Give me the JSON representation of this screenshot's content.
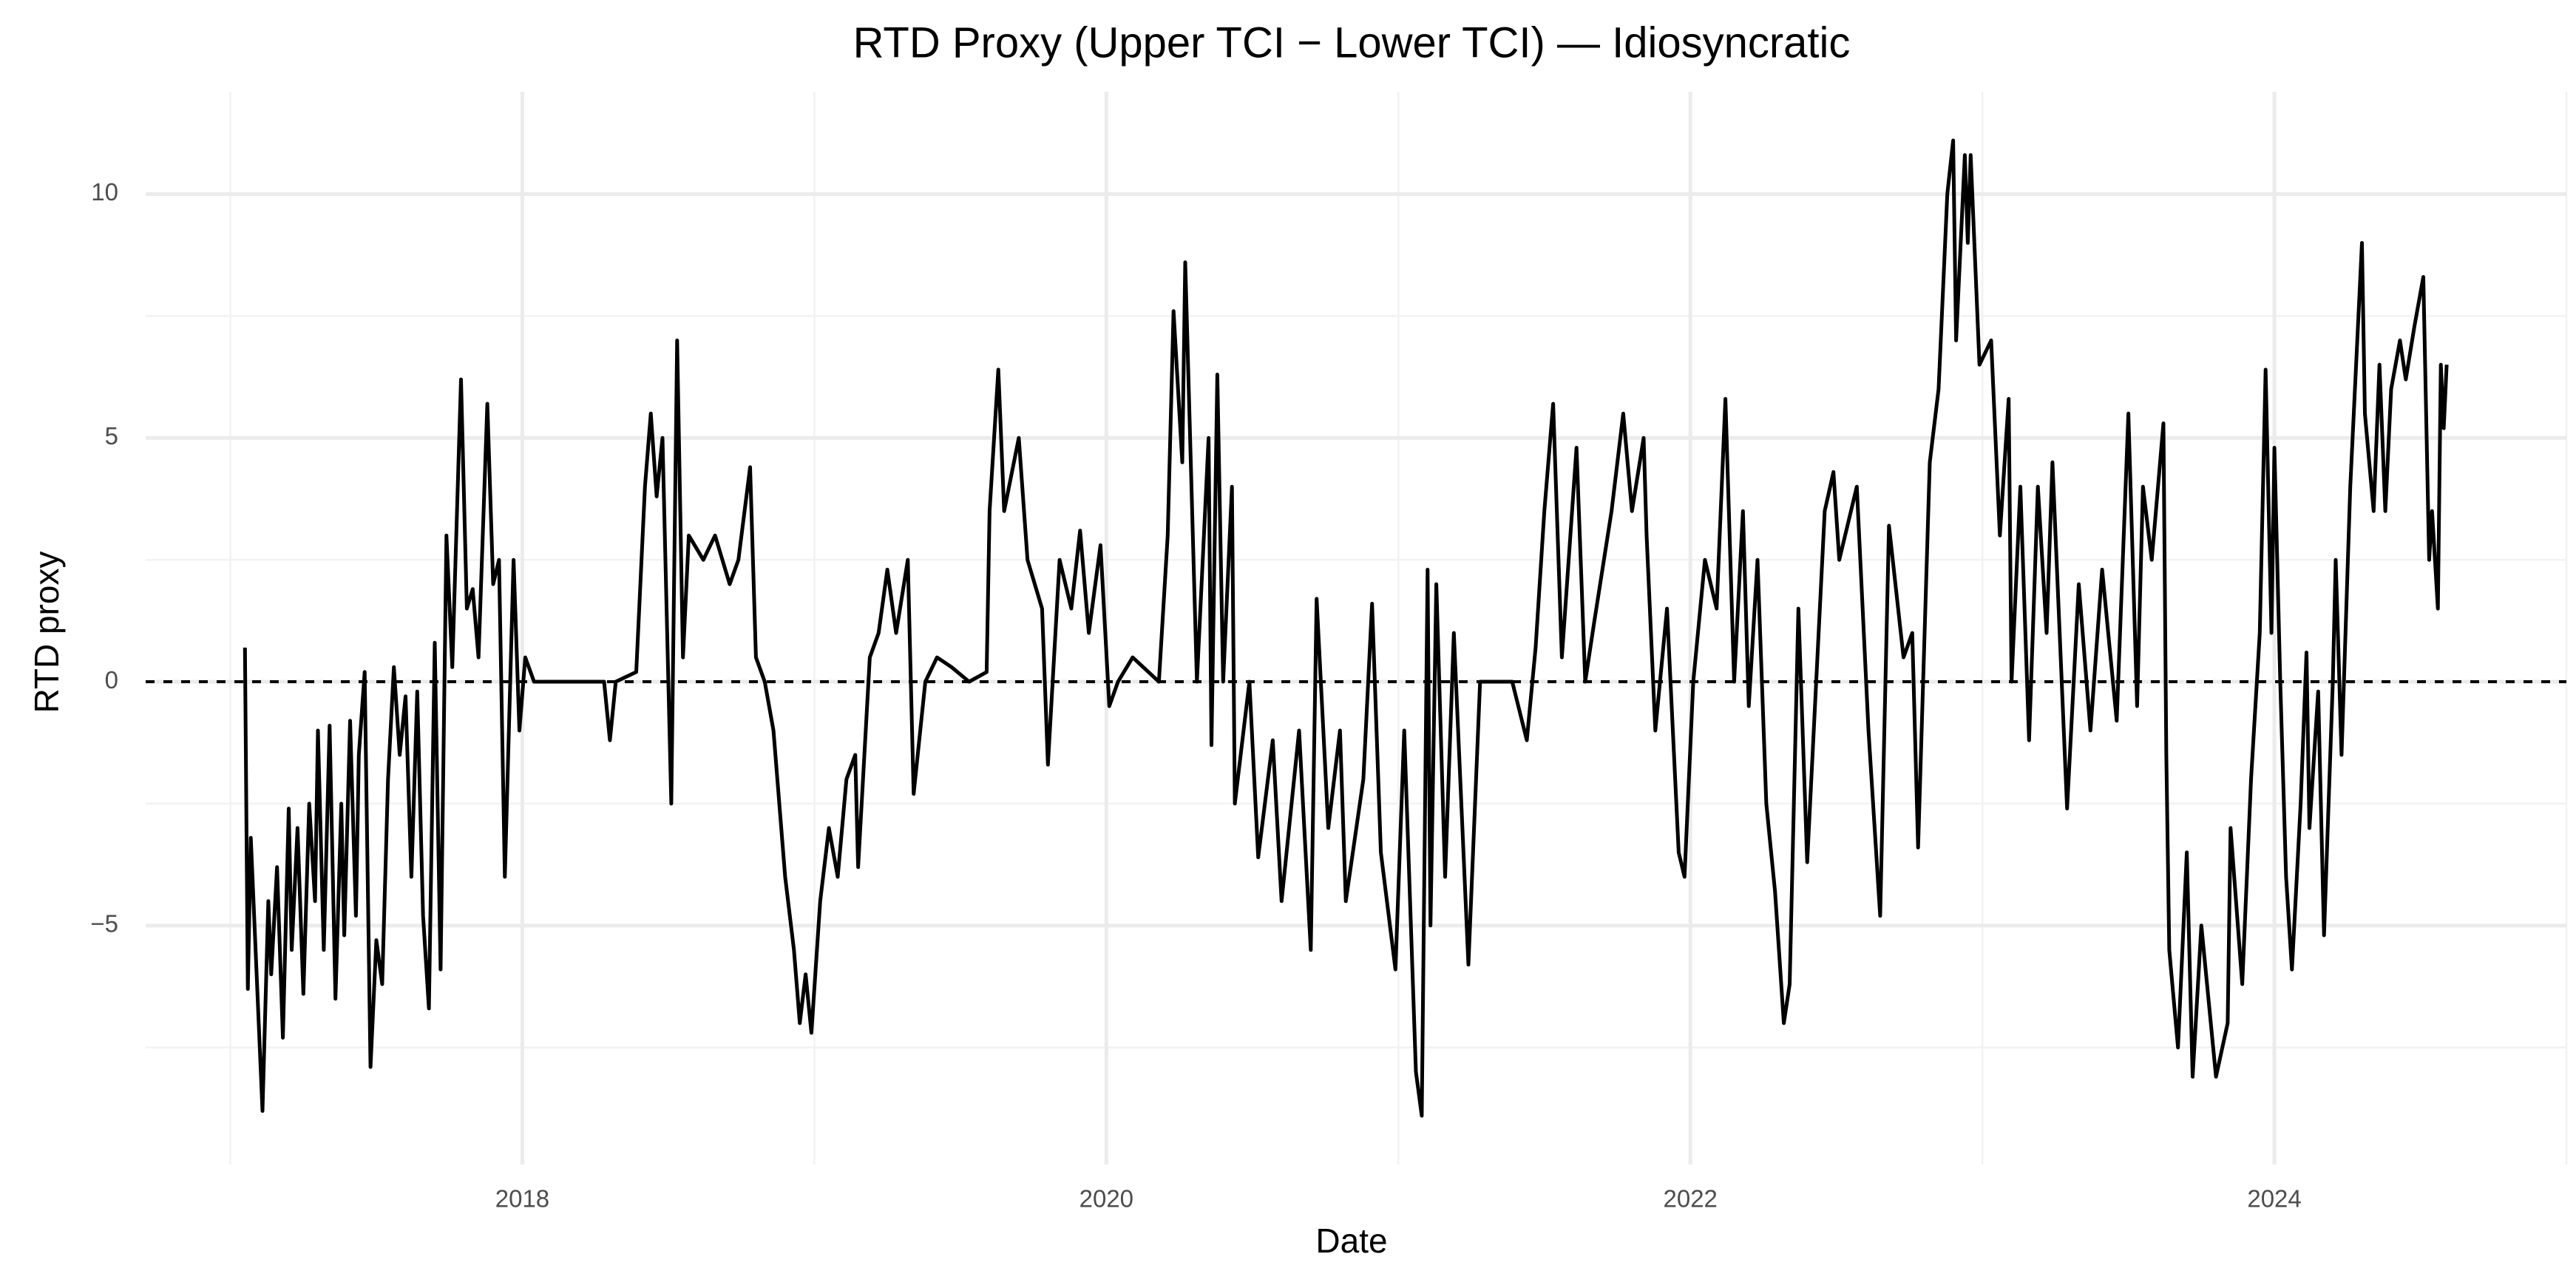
{
  "chart_data": {
    "type": "line",
    "title": "RTD Proxy (Upper TCI − Lower TCI) — Idiosyncratic",
    "x_label": "Date",
    "y_label": "RTD proxy",
    "color": "#000000",
    "reference_line": 0,
    "grid": true,
    "xlim": [
      2016.71,
      2025.0
    ],
    "xticks": [
      2018,
      2020,
      2022,
      2024
    ],
    "ylim": [
      -9.9,
      12.1
    ],
    "yticks": [
      {
        "value": -5,
        "label": "−5"
      },
      0,
      5,
      10
    ],
    "x": [
      2017.05,
      2017.06,
      2017.07,
      2017.09,
      2017.11,
      2017.13,
      2017.14,
      2017.16,
      2017.18,
      2017.2,
      2017.21,
      2017.23,
      2017.25,
      2017.27,
      2017.29,
      2017.3,
      2017.32,
      2017.34,
      2017.36,
      2017.38,
      2017.39,
      2017.41,
      2017.43,
      2017.44,
      2017.46,
      2017.48,
      2017.5,
      2017.52,
      2017.54,
      2017.56,
      2017.58,
      2017.6,
      2017.62,
      2017.64,
      2017.66,
      2017.68,
      2017.7,
      2017.72,
      2017.74,
      2017.76,
      2017.79,
      2017.81,
      2017.83,
      2017.85,
      2017.88,
      2017.9,
      2017.92,
      2017.94,
      2017.97,
      2017.99,
      2018.01,
      2018.04,
      2018.15,
      2018.28,
      2018.3,
      2018.32,
      2018.39,
      2018.42,
      2018.44,
      2018.46,
      2018.48,
      2018.51,
      2018.53,
      2018.55,
      2018.57,
      2018.62,
      2018.66,
      2018.71,
      2018.74,
      2018.78,
      2018.8,
      2018.83,
      2018.86,
      2018.9,
      2018.93,
      2018.95,
      2018.97,
      2018.99,
      2019.02,
      2019.05,
      2019.08,
      2019.11,
      2019.14,
      2019.15,
      2019.19,
      2019.22,
      2019.25,
      2019.28,
      2019.32,
      2019.34,
      2019.38,
      2019.42,
      2019.47,
      2019.53,
      2019.59,
      2019.6,
      2019.63,
      2019.65,
      2019.7,
      2019.73,
      2019.78,
      2019.8,
      2019.84,
      2019.88,
      2019.91,
      2019.94,
      2019.98,
      2020.01,
      2020.04,
      2020.09,
      2020.18,
      2020.21,
      2020.23,
      2020.26,
      2020.27,
      2020.31,
      2020.35,
      2020.36,
      2020.38,
      2020.4,
      2020.43,
      2020.44,
      2020.49,
      2020.52,
      2020.57,
      2020.6,
      2020.66,
      2020.7,
      2020.72,
      2020.76,
      2020.8,
      2020.82,
      2020.88,
      2020.91,
      2020.94,
      2020.99,
      2021.02,
      2021.06,
      2021.08,
      2021.1,
      2021.11,
      2021.13,
      2021.16,
      2021.19,
      2021.24,
      2021.28,
      2021.39,
      2021.44,
      2021.47,
      2021.5,
      2021.53,
      2021.56,
      2021.61,
      2021.64,
      2021.67,
      2021.73,
      2021.77,
      2021.8,
      2021.84,
      2021.85,
      2021.88,
      2021.92,
      2021.96,
      2021.98,
      2022.01,
      2022.05,
      2022.09,
      2022.12,
      2022.15,
      2022.18,
      2022.2,
      2022.23,
      2022.26,
      2022.29,
      2022.32,
      2022.34,
      2022.37,
      2022.4,
      2022.46,
      2022.49,
      2022.51,
      2022.57,
      2022.61,
      2022.65,
      2022.68,
      2022.73,
      2022.76,
      2022.78,
      2022.82,
      2022.85,
      2022.88,
      2022.9,
      2022.91,
      2022.94,
      2022.95,
      2022.96,
      2022.99,
      2023.03,
      2023.06,
      2023.09,
      2023.1,
      2023.13,
      2023.16,
      2023.19,
      2023.22,
      2023.24,
      2023.29,
      2023.33,
      2023.37,
      2023.41,
      2023.46,
      2023.5,
      2023.53,
      2023.55,
      2023.58,
      2023.62,
      2023.63,
      2023.64,
      2023.67,
      2023.7,
      2023.72,
      2023.75,
      2023.8,
      2023.84,
      2023.85,
      2023.89,
      2023.92,
      2023.95,
      2023.97,
      2023.99,
      2024.0,
      2024.02,
      2024.04,
      2024.06,
      2024.09,
      2024.11,
      2024.12,
      2024.15,
      2024.17,
      2024.2,
      2024.21,
      2024.23,
      2024.26,
      2024.3,
      2024.31,
      2024.34,
      2024.36,
      2024.38,
      2024.4,
      2024.43,
      2024.45,
      2024.48,
      2024.51,
      2024.53,
      2024.54,
      2024.56,
      2024.57,
      2024.58,
      2024.59
    ],
    "values": [
      0.7,
      -6.3,
      -3.2,
      -6.0,
      -8.8,
      -4.5,
      -6.0,
      -3.8,
      -7.3,
      -2.6,
      -5.5,
      -3.0,
      -6.4,
      -2.5,
      -4.5,
      -1.0,
      -5.5,
      -0.9,
      -6.5,
      -2.5,
      -5.2,
      -0.8,
      -4.8,
      -1.5,
      0.2,
      -7.9,
      -5.3,
      -6.2,
      -2.0,
      0.3,
      -1.5,
      -0.3,
      -4.0,
      -0.2,
      -4.8,
      -6.7,
      0.8,
      -5.9,
      3.0,
      0.3,
      6.2,
      1.5,
      1.9,
      0.5,
      5.7,
      2.0,
      2.5,
      -4.0,
      2.5,
      -1.0,
      0.5,
      0,
      0,
      0,
      -1.2,
      0,
      0.2,
      4.0,
      5.5,
      3.8,
      5.0,
      -2.5,
      7.0,
      0.5,
      3.0,
      2.5,
      3.0,
      2.0,
      2.5,
      4.4,
      0.5,
      0,
      -1.0,
      -4.0,
      -5.5,
      -7.0,
      -6.0,
      -7.2,
      -4.5,
      -3.0,
      -4.0,
      -2.0,
      -1.5,
      -3.8,
      0.5,
      1.0,
      2.3,
      1.0,
      2.5,
      -2.3,
      0,
      0.5,
      0.3,
      0,
      0.2,
      3.5,
      6.4,
      3.5,
      5.0,
      2.5,
      1.5,
      -1.7,
      2.5,
      1.5,
      3.1,
      1.0,
      2.8,
      -0.5,
      0,
      0.5,
      0,
      3.0,
      7.6,
      4.5,
      8.6,
      0,
      5.0,
      -1.3,
      6.3,
      0,
      4.0,
      -2.5,
      0,
      -3.6,
      -1.2,
      -4.5,
      -1.0,
      -5.5,
      1.7,
      -3.0,
      -1.0,
      -4.5,
      -2.0,
      1.6,
      -3.5,
      -5.9,
      -1.0,
      -8.0,
      -8.9,
      2.3,
      -5.0,
      2.0,
      -4.0,
      1.0,
      -5.8,
      0,
      0,
      -1.2,
      0.7,
      3.5,
      5.7,
      0.5,
      4.8,
      0,
      1.2,
      3.5,
      5.5,
      3.5,
      5.0,
      3.0,
      -1.0,
      1.5,
      -3.5,
      -4.0,
      0,
      2.5,
      1.5,
      5.8,
      0,
      3.5,
      -0.5,
      2.5,
      -2.5,
      -4.3,
      -7.0,
      -6.2,
      1.5,
      -3.7,
      3.5,
      4.3,
      2.5,
      4.0,
      -1.0,
      -4.8,
      3.2,
      0.5,
      1.0,
      -3.4,
      4.5,
      6.0,
      10.0,
      11.1,
      7.0,
      10.8,
      9.0,
      10.8,
      6.5,
      7.0,
      3.0,
      5.8,
      0,
      4.0,
      -1.2,
      4.0,
      1.0,
      4.5,
      -2.6,
      2.0,
      -1.0,
      2.3,
      -0.8,
      5.5,
      -0.5,
      4.0,
      2.5,
      5.3,
      -1.5,
      -5.5,
      -7.5,
      -3.5,
      -8.1,
      -5.0,
      -8.1,
      -7.0,
      -3.0,
      -6.2,
      -2.0,
      1.0,
      6.4,
      1.0,
      4.8,
      0,
      -4.0,
      -5.9,
      -2.5,
      0.6,
      -3.0,
      -0.2,
      -5.2,
      0,
      2.5,
      -1.5,
      4.0,
      9.0,
      5.5,
      3.5,
      6.5,
      3.5,
      6.0,
      7.0,
      6.2,
      7.3,
      8.3,
      2.5,
      3.5,
      1.5,
      6.5,
      5.2,
      6.5
    ]
  }
}
